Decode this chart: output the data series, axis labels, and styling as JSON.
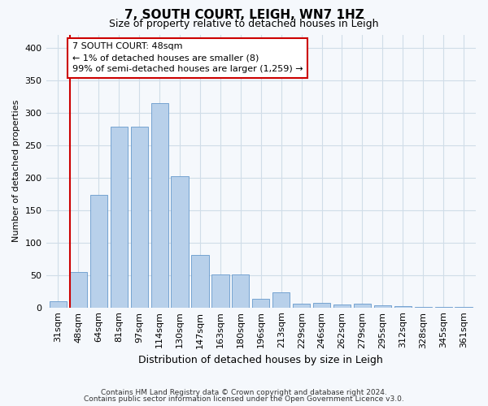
{
  "title1": "7, SOUTH COURT, LEIGH, WN7 1HZ",
  "title2": "Size of property relative to detached houses in Leigh",
  "xlabel": "Distribution of detached houses by size in Leigh",
  "ylabel": "Number of detached properties",
  "categories": [
    "31sqm",
    "48sqm",
    "64sqm",
    "81sqm",
    "97sqm",
    "114sqm",
    "130sqm",
    "147sqm",
    "163sqm",
    "180sqm",
    "196sqm",
    "213sqm",
    "229sqm",
    "246sqm",
    "262sqm",
    "279sqm",
    "295sqm",
    "312sqm",
    "328sqm",
    "345sqm",
    "361sqm"
  ],
  "values": [
    10,
    55,
    173,
    278,
    278,
    314,
    202,
    81,
    51,
    51,
    13,
    23,
    6,
    7,
    4,
    6,
    3,
    2,
    1,
    1,
    1
  ],
  "bar_color": "#b8d0ea",
  "bar_edge_color": "#6699cc",
  "highlight_idx": 1,
  "red_color": "#cc0000",
  "annotation_line1": "7 SOUTH COURT: 48sqm",
  "annotation_line2": "← 1% of detached houses are smaller (8)",
  "annotation_line3": "99% of semi-detached houses are larger (1,259) →",
  "grid_color": "#d0dde8",
  "background_color": "#f5f8fc",
  "footer1": "Contains HM Land Registry data © Crown copyright and database right 2024.",
  "footer2": "Contains public sector information licensed under the Open Government Licence v3.0.",
  "ylim": [
    0,
    420
  ],
  "yticks": [
    0,
    50,
    100,
    150,
    200,
    250,
    300,
    350,
    400
  ],
  "title1_fontsize": 11,
  "title2_fontsize": 9,
  "ylabel_fontsize": 8,
  "xlabel_fontsize": 9,
  "tick_fontsize": 8,
  "annot_fontsize": 8,
  "footer_fontsize": 6.5
}
